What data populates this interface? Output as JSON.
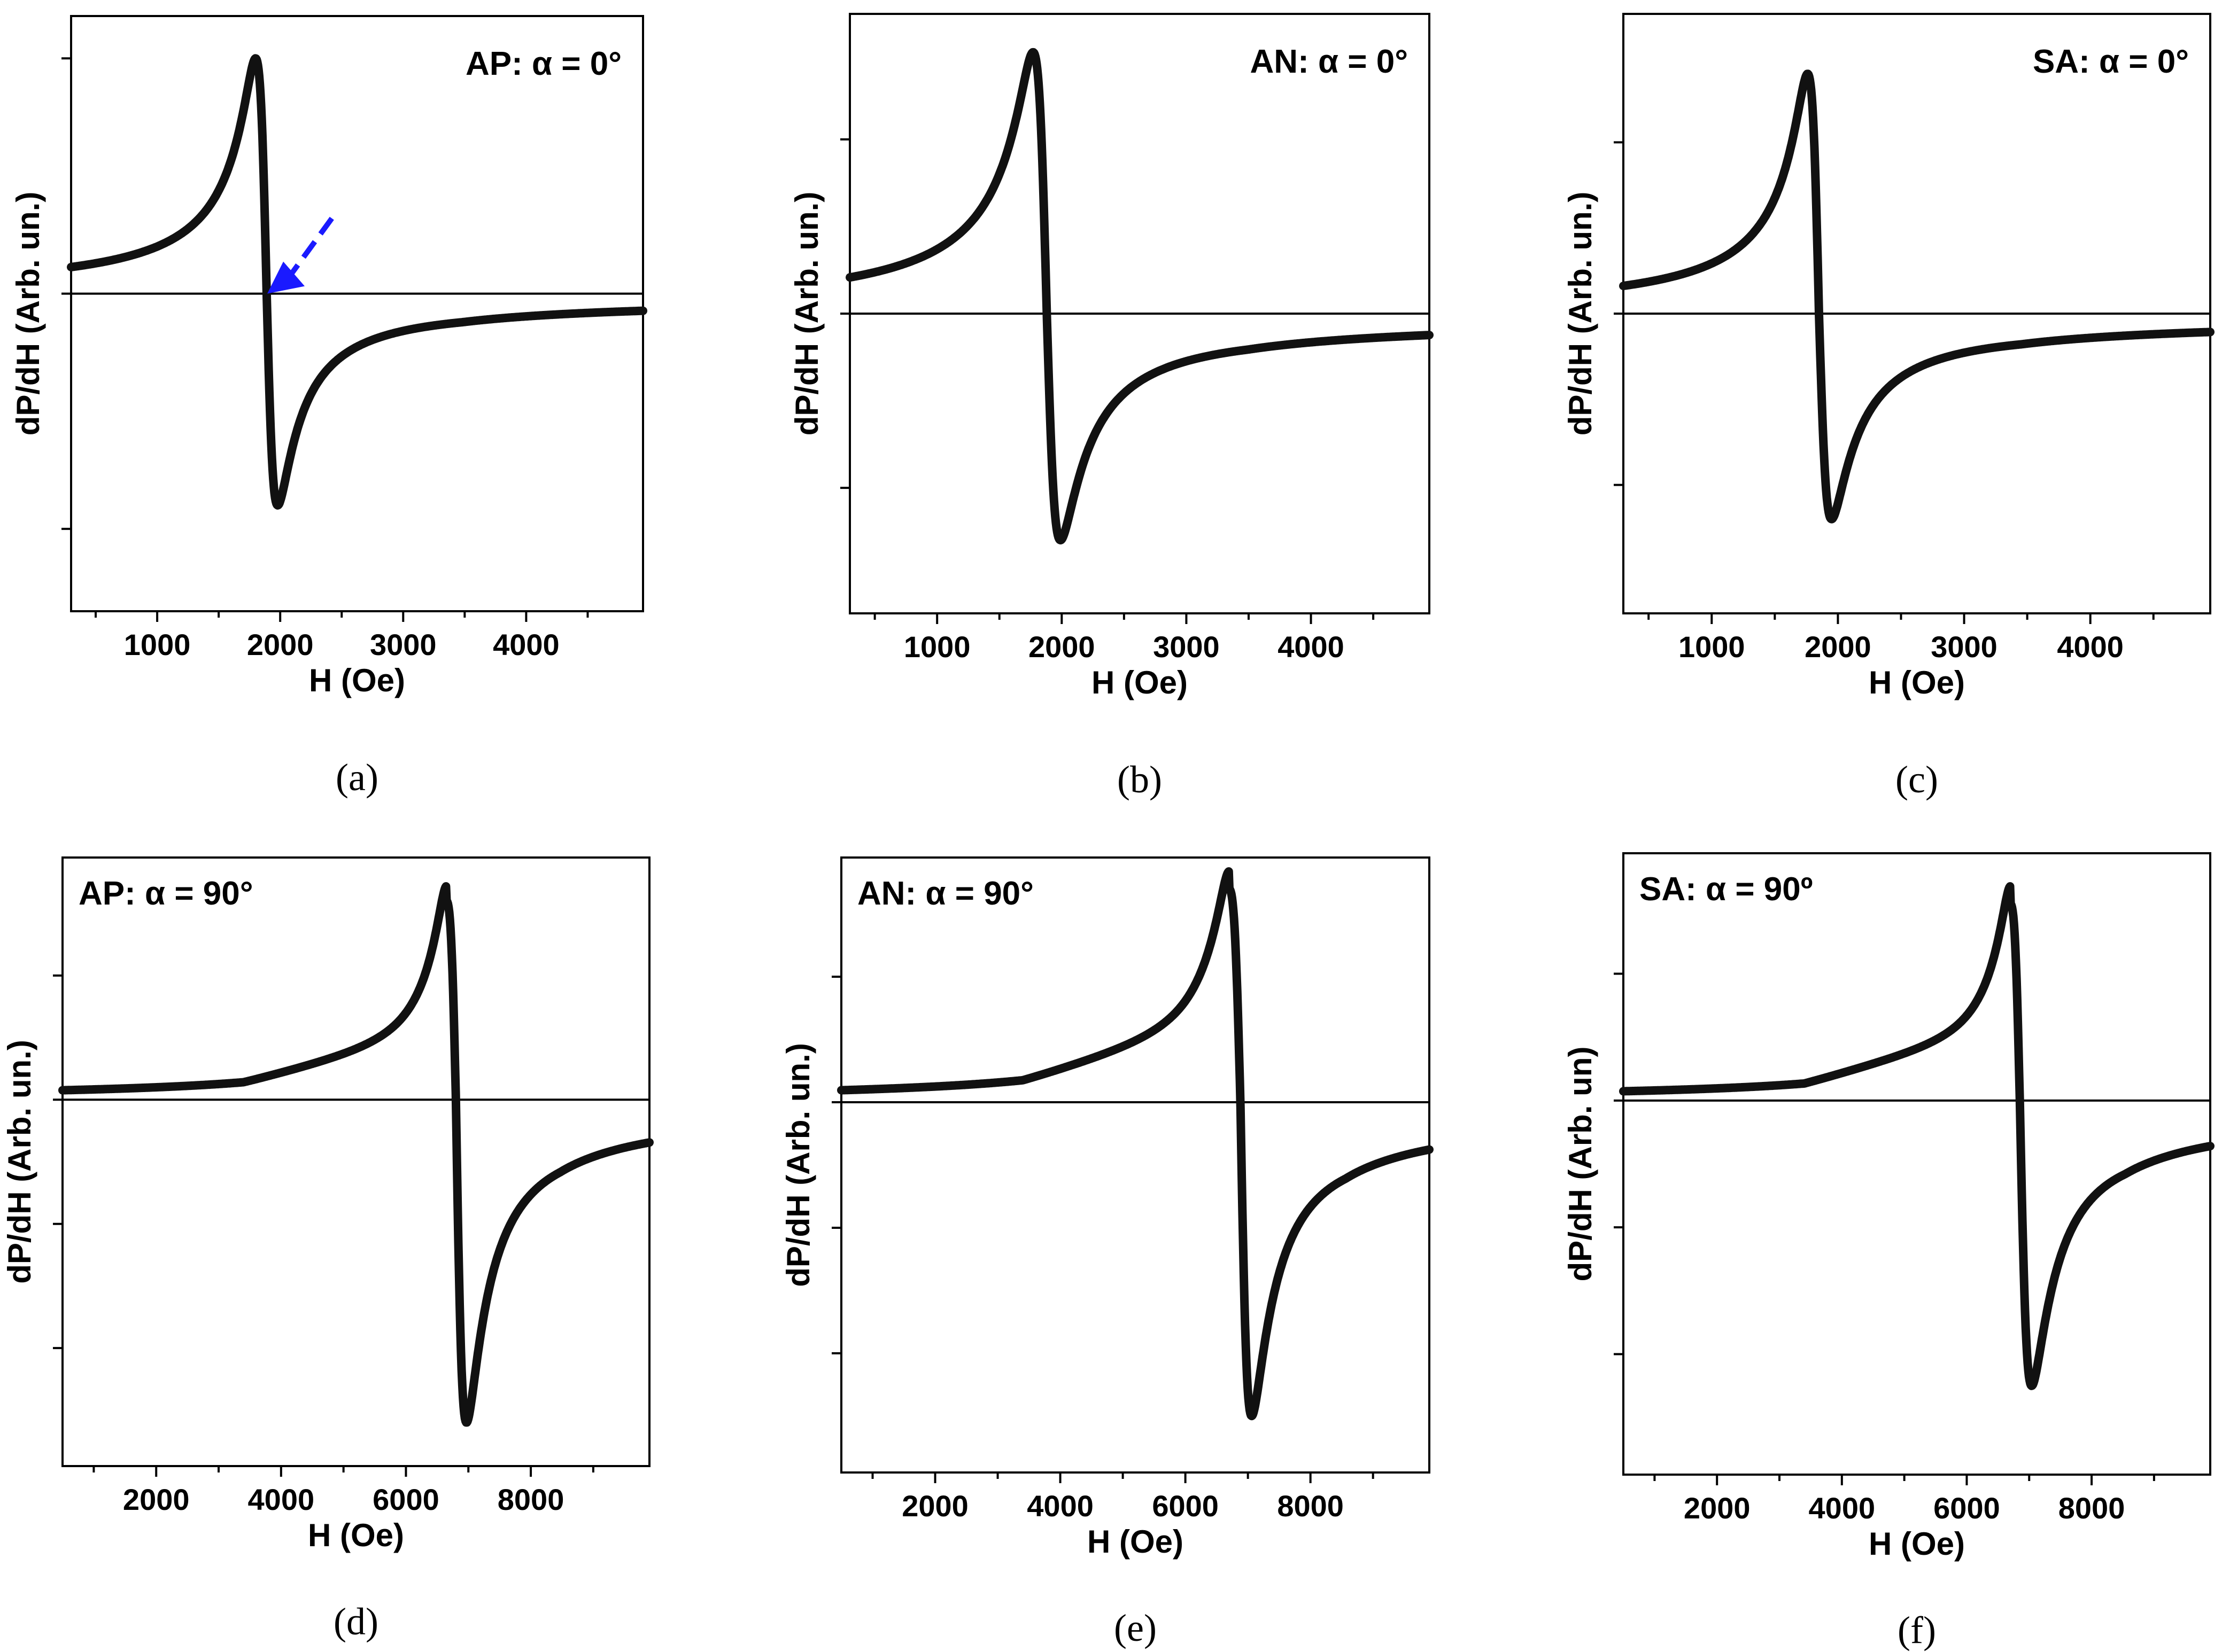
{
  "chart_data": [
    {
      "id": "a",
      "type": "line",
      "caption": "(a)",
      "annotation": "AP: α = 0°",
      "annotation_position": "top-right",
      "xlabel": "H (Oe)",
      "ylabel": "dP/dH (Arb. un.)",
      "xlim": [
        300,
        4950
      ],
      "ylim": [
        -1.35,
        1.18
      ],
      "xticks": [
        1000,
        2000,
        3000,
        4000
      ],
      "yticks": [
        -1.0,
        1.0
      ],
      "line_shape": {
        "Hr": 1890,
        "peak_low": 1800,
        "peak_high": 1980,
        "A": 1.0,
        "B": 0.9,
        "edge_low": 0.1,
        "tail": -0.02
      },
      "arrow": {
        "x_from": 2420,
        "y_from": 0.32,
        "x_to": 1895,
        "y_to": 0.0,
        "color": "#1a1aff"
      }
    },
    {
      "id": "b",
      "type": "line",
      "caption": "(b)",
      "annotation": "AN: α = 0°",
      "annotation_position": "top-right",
      "xlabel": "H (Oe)",
      "ylabel": "dP/dH (Arb. un.)",
      "xlim": [
        300,
        4950
      ],
      "ylim": [
        -1.72,
        1.72
      ],
      "xticks": [
        1000,
        2000,
        3000,
        4000
      ],
      "yticks": [
        -1.0,
        1.0
      ],
      "line_shape": {
        "Hr": 1880,
        "peak_low": 1770,
        "peak_high": 1990,
        "A": 1.5,
        "B": 1.3,
        "edge_low": 0.1,
        "tail": -0.03
      }
    },
    {
      "id": "c",
      "type": "line",
      "caption": "(c)",
      "annotation": "SA: α = 0°",
      "annotation_position": "top-right",
      "xlabel": "H (Oe)",
      "ylabel": "dP/dH (Arb. un.)",
      "xlim": [
        300,
        4950
      ],
      "ylim": [
        -1.75,
        1.75
      ],
      "xticks": [
        1000,
        2000,
        3000,
        4000
      ],
      "yticks": [
        -1.0,
        1.0
      ],
      "line_shape": {
        "Hr": 1850,
        "peak_low": 1760,
        "peak_high": 1950,
        "A": 1.4,
        "B": 1.2,
        "edge_low": 0.1,
        "tail": -0.03
      }
    },
    {
      "id": "d",
      "type": "line",
      "caption": "(d)",
      "annotation": "AP: α = 90°",
      "annotation_position": "top-left",
      "xlabel": "H (Oe)",
      "ylabel": "dP/dH (Arb. un.)",
      "xlim": [
        500,
        9900
      ],
      "ylim": [
        -2.95,
        1.95
      ],
      "xticks": [
        2000,
        4000,
        6000,
        8000
      ],
      "yticks": [
        -2.0,
        -1.0,
        1.0
      ],
      "line_shape": {
        "Hr": 6800,
        "peak_low": 6650,
        "peak_high": 6970,
        "A": 1.6,
        "B": 2.6,
        "edge_low": -0.04,
        "tail": -0.06,
        "shoulder": 0.12
      }
    },
    {
      "id": "e",
      "type": "line",
      "caption": "(e)",
      "annotation": "AN: α = 90°",
      "annotation_position": "top-left",
      "xlabel": "H (Oe)",
      "ylabel": "dP/dH (Arb. un.)",
      "xlim": [
        500,
        9900
      ],
      "ylim": [
        -2.95,
        1.95
      ],
      "xticks": [
        2000,
        4000,
        6000,
        8000
      ],
      "yticks": [
        -2.0,
        -1.0,
        1.0
      ],
      "line_shape": {
        "Hr": 6880,
        "peak_low": 6700,
        "peak_high": 7060,
        "A": 1.7,
        "B": 2.5,
        "edge_low": 0.02,
        "tail": -0.08,
        "shoulder": 0.14
      }
    },
    {
      "id": "f",
      "type": "line",
      "caption": "(f)",
      "annotation": "SA: α = 90º",
      "annotation_position": "top-left",
      "xlabel": "H (Oe)",
      "ylabel": "dP/dH (Arb. un)",
      "xlim": [
        500,
        9900
      ],
      "ylim": [
        -2.95,
        1.95
      ],
      "xticks": [
        2000,
        4000,
        6000,
        8000
      ],
      "yticks": [
        -2.0,
        -1.0,
        1.0
      ],
      "line_shape": {
        "Hr": 6850,
        "peak_low": 6700,
        "peak_high": 7040,
        "A": 1.55,
        "B": 2.25,
        "edge_low": 0.02,
        "tail": -0.08,
        "shoulder": 0.14
      }
    }
  ]
}
